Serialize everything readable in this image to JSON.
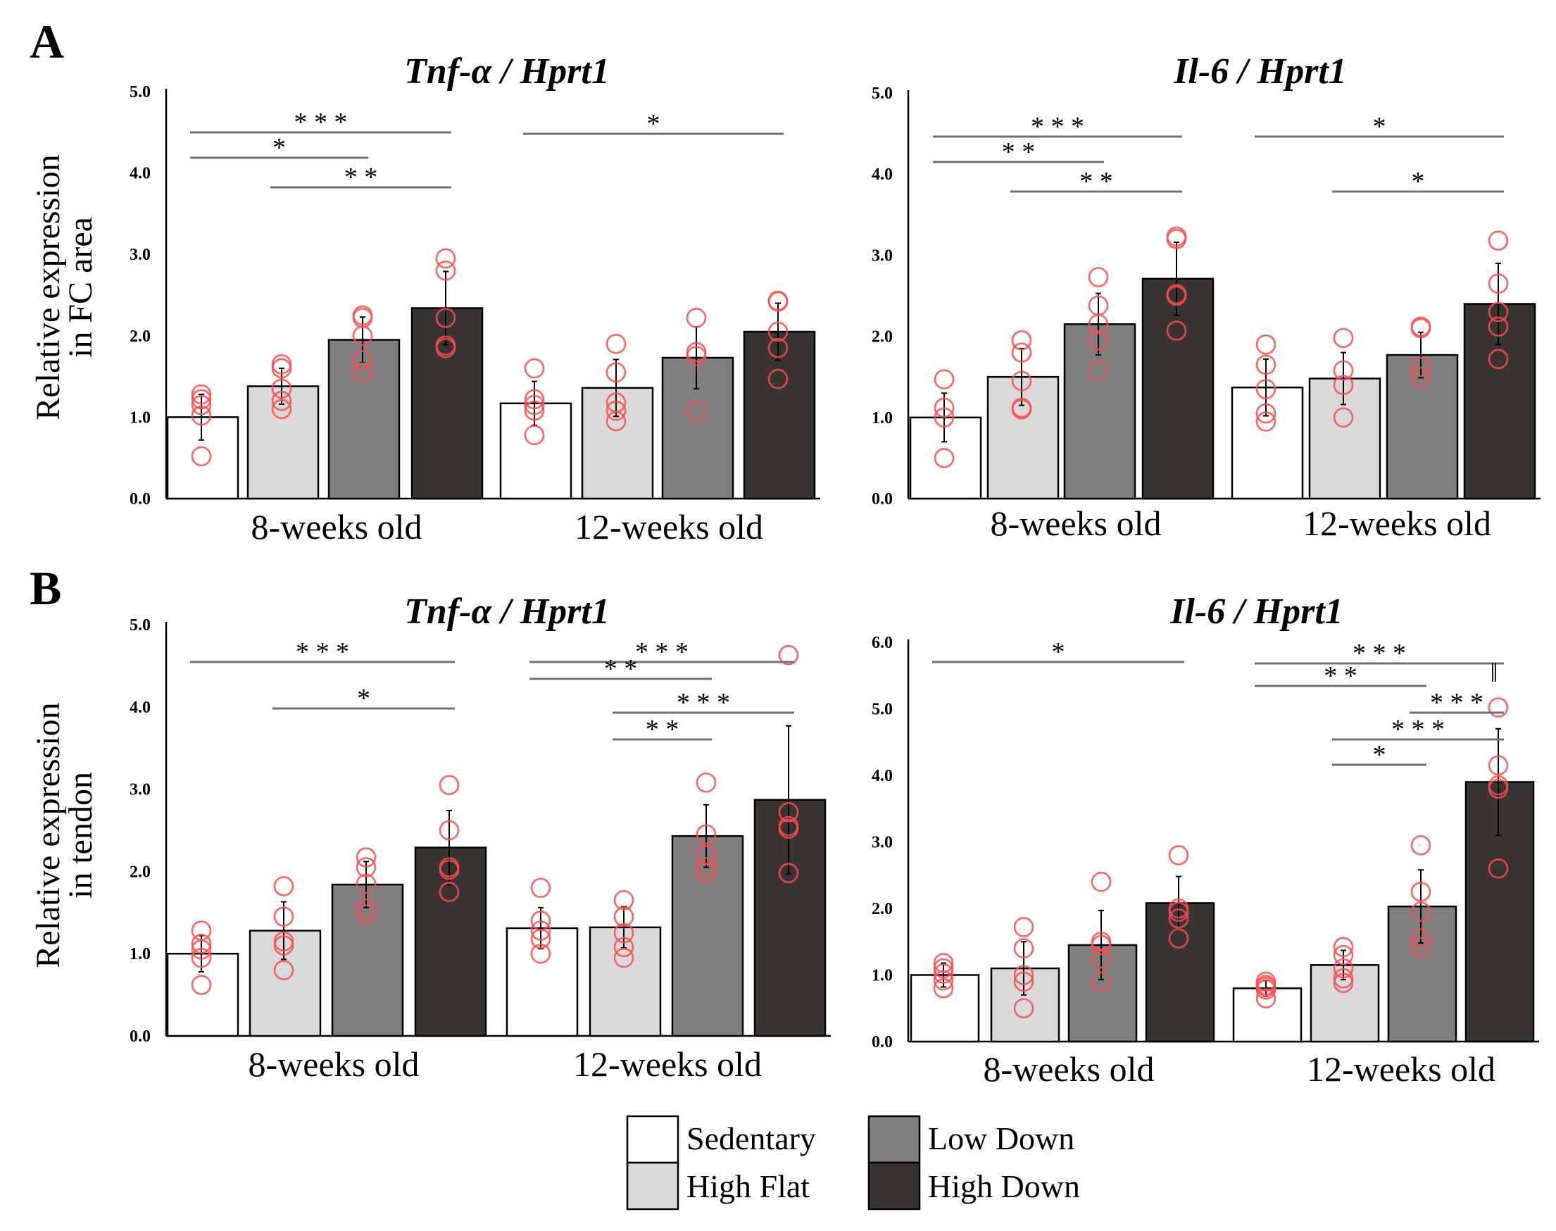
{
  "panels": [
    {
      "letter": "A",
      "ylabel_lines": [
        "Relative expression",
        "in FC area"
      ]
    },
    {
      "letter": "B",
      "ylabel_lines": [
        "Relative expression",
        "in tendon"
      ]
    }
  ],
  "groups": [
    "8-weeks old",
    "12-weeks old"
  ],
  "legend": [
    {
      "label": "Sedentary",
      "color": "#ffffff"
    },
    {
      "label": "High Flat",
      "color": "#d9d9d9"
    },
    {
      "label": "Low Down",
      "color": "#7f7f7f"
    },
    {
      "label": "High Down",
      "color": "#383431"
    }
  ],
  "chart_data": [
    {
      "type": "bar",
      "panel": "A",
      "title": "Tnf-α / Hprt1",
      "ylim": [
        0,
        5
      ],
      "yticks": [
        "0.0",
        "1.0",
        "2.0",
        "3.0",
        "4.0",
        "5.0"
      ],
      "categories": [
        "8-weeks old",
        "12-weeks old"
      ],
      "series": [
        {
          "name": "Sedentary",
          "values": [
            1.0,
            1.17
          ],
          "errors": [
            0.28,
            0.27
          ],
          "points": [
            [
              0.52,
              1.02,
              1.15,
              1.22,
              1.28
            ],
            [
              0.78,
              1.08,
              1.15,
              1.22,
              1.6
            ]
          ]
        },
        {
          "name": "High Flat",
          "values": [
            1.38,
            1.36
          ],
          "errors": [
            0.22,
            0.35
          ],
          "points": [
            [
              1.1,
              1.2,
              1.35,
              1.6,
              1.65
            ],
            [
              0.95,
              1.08,
              1.18,
              1.55,
              1.9
            ]
          ]
        },
        {
          "name": "Low Down",
          "values": [
            1.95,
            1.73
          ],
          "errors": [
            0.28,
            0.38
          ],
          "points": [
            [
              1.55,
              1.7,
              2.0,
              2.22,
              2.25
            ],
            [
              1.07,
              1.75,
              1.8,
              2.22
            ]
          ]
        },
        {
          "name": "High Down",
          "values": [
            2.34,
            2.05
          ],
          "errors": [
            0.45,
            0.35
          ],
          "points": [
            [
              1.85,
              1.88,
              2.22,
              2.8,
              2.95
            ],
            [
              1.47,
              1.85,
              2.05,
              2.42,
              2.43
            ]
          ]
        }
      ],
      "significance": [
        {
          "from": 0,
          "to": 3,
          "label": "* * *"
        },
        {
          "from": 0,
          "to": 2,
          "label": "*"
        },
        {
          "from": 1,
          "to": 3,
          "label": "* *"
        },
        {
          "from": 4,
          "to": 7,
          "label": "*"
        }
      ]
    },
    {
      "type": "bar",
      "panel": "A",
      "title": "Il-6 / Hprt1",
      "ylim": [
        0,
        5
      ],
      "yticks": [
        "0.0",
        "1.0",
        "2.0",
        "3.0",
        "4.0",
        "5.0"
      ],
      "categories": [
        "8-weeks old",
        "12-weeks old"
      ],
      "series": [
        {
          "name": "Sedentary",
          "values": [
            1.0,
            1.37
          ],
          "errors": [
            0.3,
            0.35
          ],
          "points": [
            [
              0.5,
              1.0,
              1.12,
              1.47
            ],
            [
              0.95,
              1.05,
              1.35,
              1.65,
              1.9
            ]
          ]
        },
        {
          "name": "High Flat",
          "values": [
            1.5,
            1.48
          ],
          "errors": [
            0.35,
            0.32
          ],
          "points": [
            [
              1.1,
              1.12,
              1.45,
              1.8,
              1.95
            ],
            [
              1.0,
              1.4,
              1.58,
              1.98
            ]
          ]
        },
        {
          "name": "Low Down",
          "values": [
            2.15,
            1.77
          ],
          "errors": [
            0.38,
            0.28
          ],
          "points": [
            [
              1.58,
              1.95,
              2.15,
              2.38,
              2.73
            ],
            [
              1.5,
              1.62,
              2.1,
              2.12
            ]
          ]
        },
        {
          "name": "High Down",
          "values": [
            2.71,
            2.4
          ],
          "errors": [
            0.45,
            0.5
          ],
          "points": [
            [
              2.07,
              2.5,
              2.52,
              3.2,
              3.23
            ],
            [
              1.72,
              2.12,
              2.3,
              2.65,
              3.18
            ]
          ]
        }
      ],
      "significance": [
        {
          "from": 0,
          "to": 3,
          "label": "* * *"
        },
        {
          "from": 0,
          "to": 2,
          "label": "* *"
        },
        {
          "from": 1,
          "to": 3,
          "label": "* *"
        },
        {
          "from": 4,
          "to": 7,
          "label": "*"
        },
        {
          "from": 5,
          "to": 7,
          "label": "*"
        }
      ]
    },
    {
      "type": "bar",
      "panel": "B",
      "title": "Tnf-α / Hprt1",
      "ylim": [
        0,
        5
      ],
      "yticks": [
        "0.0",
        "1.0",
        "2.0",
        "3.0",
        "4.0",
        "5.0"
      ],
      "categories": [
        "8-weeks old",
        "12-weeks old"
      ],
      "series": [
        {
          "name": "Sedentary",
          "values": [
            1.0,
            1.31
          ],
          "errors": [
            0.22,
            0.25
          ],
          "points": [
            [
              0.62,
              0.95,
              1.05,
              1.12,
              1.28
            ],
            [
              1.0,
              1.18,
              1.28,
              1.4,
              1.8
            ]
          ]
        },
        {
          "name": "High Flat",
          "values": [
            1.28,
            1.32
          ],
          "errors": [
            0.35,
            0.25
          ],
          "points": [
            [
              0.8,
              1.1,
              1.15,
              1.45,
              1.82
            ],
            [
              0.95,
              1.08,
              1.25,
              1.45,
              1.65
            ]
          ]
        },
        {
          "name": "Low Down",
          "values": [
            1.84,
            2.43
          ],
          "errors": [
            0.28,
            0.38
          ],
          "points": [
            [
              1.48,
              1.55,
              1.85,
              2.05,
              2.17
            ],
            [
              1.98,
              2.05,
              2.2,
              2.45,
              3.08
            ]
          ]
        },
        {
          "name": "High Down",
          "values": [
            2.29,
            2.87
          ],
          "errors": [
            0.45,
            0.9
          ],
          "points": [
            [
              1.75,
              2.02,
              2.05,
              2.5,
              3.05
            ],
            [
              1.98,
              2.52,
              2.55,
              2.72,
              4.63
            ]
          ]
        }
      ],
      "significance": [
        {
          "from": 0,
          "to": 3,
          "label": "* * *"
        },
        {
          "from": 1,
          "to": 3,
          "label": "*"
        },
        {
          "from": 4,
          "to": 7,
          "label": "* * *"
        },
        {
          "from": 4,
          "to": 6,
          "label": "* *"
        },
        {
          "from": 5,
          "to": 7,
          "label": "* * *"
        },
        {
          "from": 5,
          "to": 6,
          "label": "* *"
        }
      ]
    },
    {
      "type": "bar",
      "panel": "B",
      "title": "Il-6 / Hprt1",
      "ylim": [
        0,
        6
      ],
      "yticks": [
        "0.0",
        "1.0",
        "2.0",
        "3.0",
        "4.0",
        "5.0",
        "6.0"
      ],
      "categories": [
        "8-weeks old",
        "12-weeks old"
      ],
      "series": [
        {
          "name": "Sedentary",
          "values": [
            1.0,
            0.8
          ],
          "errors": [
            0.18,
            0.12
          ],
          "points": [
            [
              0.8,
              0.92,
              1.02,
              1.1,
              1.18
            ],
            [
              0.65,
              0.78,
              0.82,
              0.85,
              0.9
            ]
          ]
        },
        {
          "name": "High Flat",
          "values": [
            1.1,
            1.15
          ],
          "errors": [
            0.4,
            0.22
          ],
          "points": [
            [
              0.5,
              0.9,
              1.0,
              1.4,
              1.72
            ],
            [
              0.88,
              0.95,
              1.1,
              1.3,
              1.42
            ]
          ]
        },
        {
          "name": "Low Down",
          "values": [
            1.45,
            2.03
          ],
          "errors": [
            0.52,
            0.55
          ],
          "points": [
            [
              0.9,
              1.25,
              1.45,
              1.5,
              2.4
            ],
            [
              1.42,
              1.55,
              1.95,
              2.25,
              2.95
            ]
          ]
        },
        {
          "name": "High Down",
          "values": [
            2.08,
            3.9
          ],
          "errors": [
            0.4,
            0.8
          ],
          "points": [
            [
              1.55,
              1.85,
              1.95,
              2.0,
              2.8
            ],
            [
              2.6,
              3.8,
              3.85,
              4.15,
              5.02
            ]
          ]
        }
      ],
      "significance": [
        {
          "from": 0,
          "to": 3,
          "label": "*"
        },
        {
          "from": 4,
          "to": 7,
          "label": "* * *"
        },
        {
          "from": 4,
          "to": 6,
          "label": "* *"
        },
        {
          "from": 6,
          "to": 7,
          "label": "* * *"
        },
        {
          "from": 5,
          "to": 7,
          "label": "* * *"
        },
        {
          "from": 5,
          "to": 6,
          "label": "*"
        }
      ],
      "annotation": "‖"
    }
  ]
}
